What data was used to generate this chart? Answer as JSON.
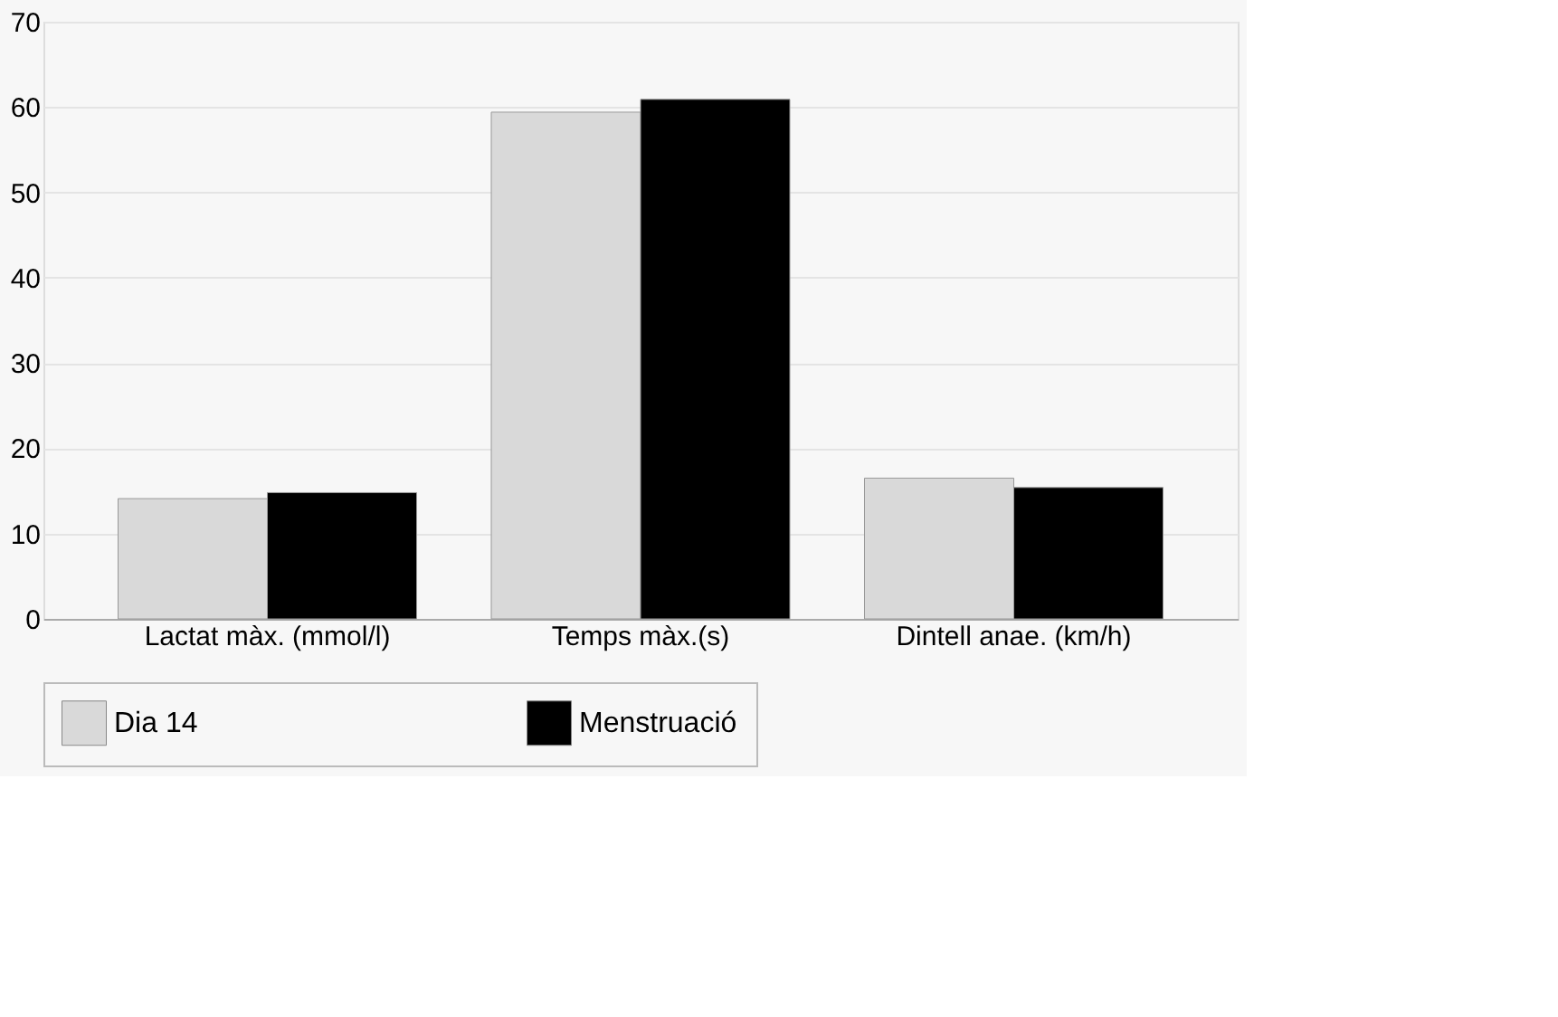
{
  "chart_data": {
    "type": "bar",
    "categories": [
      "Lactat màx. (mmol/l)",
      "Temps màx.(s)",
      "Dintell anae. (km/h)"
    ],
    "series": [
      {
        "name": "Dia 14",
        "color": "#d9d9d9",
        "values": [
          14.1,
          59.4,
          16.5
        ]
      },
      {
        "name": "Menstruació",
        "color": "#000000",
        "values": [
          14.8,
          60.9,
          15.4
        ]
      }
    ],
    "ylim": [
      0,
      70
    ],
    "yticks": [
      0,
      10,
      20,
      30,
      40,
      50,
      60,
      70
    ],
    "grid": "y",
    "legend": "bottom"
  }
}
